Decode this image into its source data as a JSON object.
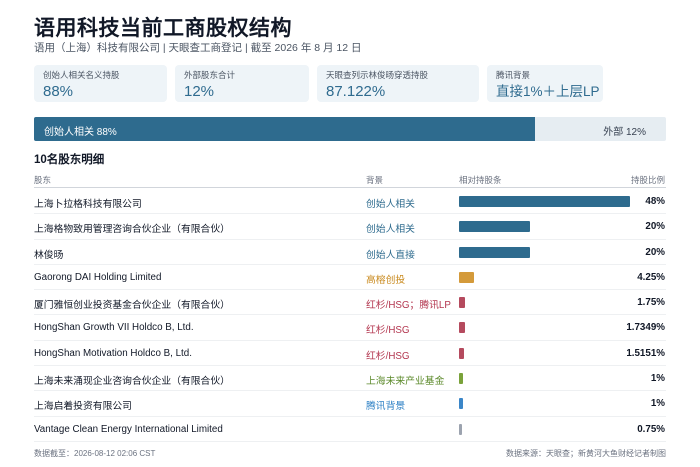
{
  "title": "语用科技当前工商股权结构",
  "subtitle": "语用（上海）科技有限公司 | 天眼查工商登记 | 截至 2026 年 8 月 12 日",
  "cards": [
    {
      "key": "创始人相关名义持股",
      "value": "88%"
    },
    {
      "key": "外部股东合计",
      "value": "12%"
    },
    {
      "key": "天眼查列示林俊旸穿透持股",
      "value": "87.122%"
    },
    {
      "key": "腾讯背景",
      "value": "直接1%＋上层LP"
    }
  ],
  "summary_bar": {
    "founder_label": "创始人相关 88%",
    "founder_pct": 88,
    "external_label": "外部 12%",
    "fill_color": "#2e6b8e"
  },
  "section_title": "10名股东明细",
  "table": {
    "headers": {
      "holder": "股东",
      "background": "背景",
      "bar": "相对持股条",
      "pct": "持股比例"
    },
    "rows": [
      {
        "name": "上海卜拉格科技有限公司",
        "background": "创始人相关",
        "bg_color": "#2e6b8e",
        "pct_text": "48%",
        "value": 48,
        "bar_color": "#2e6b8e"
      },
      {
        "name": "上海格物致用管理咨询合伙企业（有限合伙）",
        "background": "创始人相关",
        "bg_color": "#2e6b8e",
        "pct_text": "20%",
        "value": 20,
        "bar_color": "#2e6b8e"
      },
      {
        "name": "林俊旸",
        "background": "创始人直接",
        "bg_color": "#2e6b8e",
        "pct_text": "20%",
        "value": 20,
        "bar_color": "#2e6b8e"
      },
      {
        "name": "Gaorong DAI Holding Limited",
        "background": "高榕创投",
        "bg_color": "#c98a1e",
        "pct_text": "4.25%",
        "value": 4.25,
        "bar_color": "#d49a3a"
      },
      {
        "name": "厦门雅恒创业投资基金合伙企业（有限合伙）",
        "background": "红杉/HSG；腾讯LP",
        "bg_color": "#b3364f",
        "pct_text": "1.75%",
        "value": 1.75,
        "bar_color": "#b54a5e"
      },
      {
        "name": "HongShan Growth VII Holdco B, Ltd.",
        "background": "红杉/HSG",
        "bg_color": "#b3364f",
        "pct_text": "1.7349%",
        "value": 1.7349,
        "bar_color": "#b54a5e"
      },
      {
        "name": "HongShan Motivation Holdco B, Ltd.",
        "background": "红杉/HSG",
        "bg_color": "#b3364f",
        "pct_text": "1.5151%",
        "value": 1.5151,
        "bar_color": "#b54a5e"
      },
      {
        "name": "上海未来涌现企业咨询合伙企业（有限合伙）",
        "background": "上海未来产业基金",
        "bg_color": "#5c8a2b",
        "pct_text": "1%",
        "value": 1,
        "bar_color": "#7aa23a"
      },
      {
        "name": "上海启着投资有限公司",
        "background": "腾讯背景",
        "bg_color": "#2b7fc4",
        "pct_text": "1%",
        "value": 1,
        "bar_color": "#3b86c8"
      },
      {
        "name": "Vantage Clean Energy International Limited",
        "background": "",
        "bg_color": "#6b7280",
        "pct_text": "0.75%",
        "value": 0.75,
        "bar_color": "#9ca3af"
      }
    ]
  },
  "footer": {
    "left": "数据截至：2026-08-12 02:06 CST",
    "right": "数据来源：天眼查；新黄河大鱼财经记者制图"
  }
}
